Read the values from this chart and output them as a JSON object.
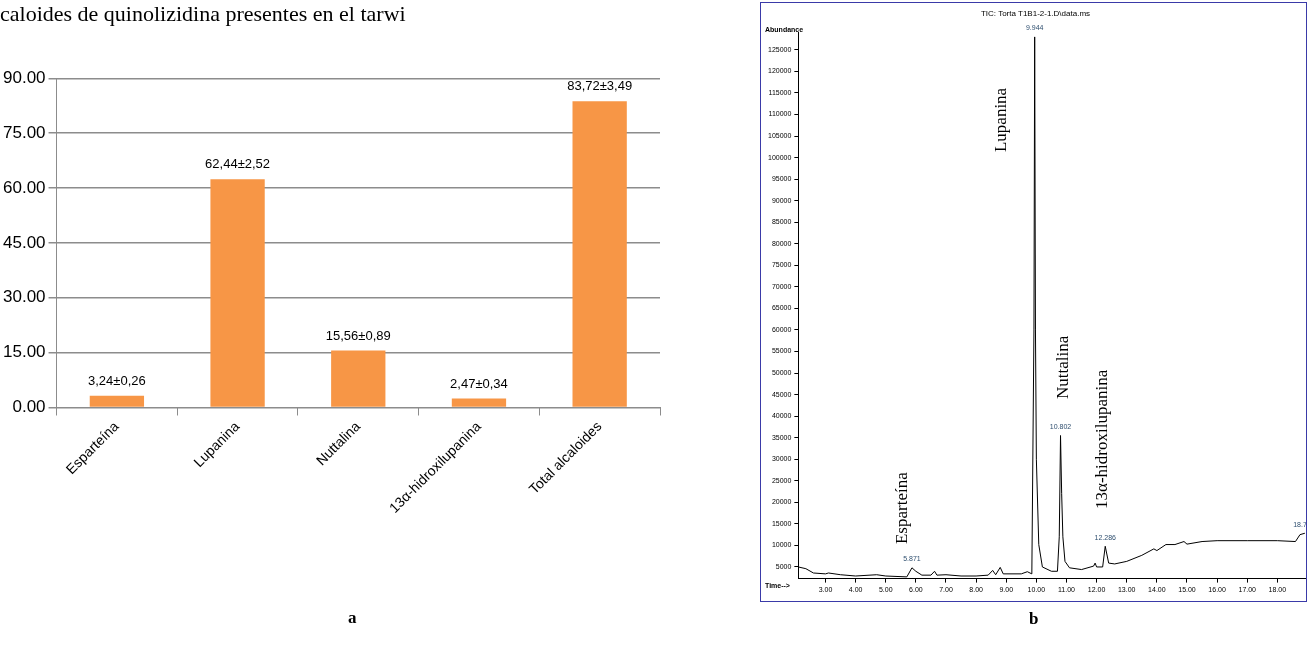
{
  "chart_data": [
    {
      "type": "bar",
      "title": "caloides de quinolizidina presentes en el tarwi",
      "categories": [
        "Esparteína",
        "Lupanina",
        "Nuttalina",
        "13α-hidroxilupanina",
        "Total alcaloides"
      ],
      "values": [
        3.24,
        62.44,
        15.56,
        2.47,
        83.72
      ],
      "value_labels": [
        "3,24±0,26",
        "62,44±2,52",
        "15,56±0,89",
        "2,47±0,34",
        "83,72±3,49"
      ],
      "color": "#f79646",
      "ylim": [
        0,
        90
      ],
      "yticks": [
        {
          "value": 0,
          "label": "0.00"
        },
        {
          "value": 15,
          "label": "15.00"
        },
        {
          "value": 30,
          "label": "30.00"
        },
        {
          "value": 45,
          "label": "45.00"
        },
        {
          "value": 60,
          "label": "60.00"
        },
        {
          "value": 75,
          "label": "75.00"
        },
        {
          "value": 90,
          "label": "90.00"
        }
      ],
      "grid": "y",
      "annotations": [
        "a"
      ]
    },
    {
      "type": "line",
      "title": "TIC: Torta T1B1-2-1.D\\data.ms",
      "xlabel": "Time-->",
      "ylabel": "Abundance",
      "x": [
        2.1,
        2.35,
        2.6,
        3.0,
        3.1,
        3.5,
        4.0,
        4.7,
        5.0,
        5.7,
        5.871,
        6.0,
        6.2,
        6.5,
        6.62,
        6.7,
        7.0,
        7.5,
        8.0,
        8.4,
        8.55,
        8.65,
        8.8,
        8.9,
        9.5,
        9.7,
        9.85,
        9.92,
        9.944,
        9.97,
        10.0,
        10.08,
        10.2,
        10.5,
        10.7,
        10.76,
        10.802,
        10.84,
        10.88,
        10.95,
        11.1,
        11.5,
        11.9,
        11.95,
        12.0,
        12.2,
        12.286,
        12.4,
        12.6,
        13.0,
        13.5,
        13.9,
        14.0,
        14.3,
        14.6,
        14.9,
        15.0,
        15.5,
        16.0,
        17.0,
        18.0,
        18.6,
        18.75,
        18.9
      ],
      "values": [
        5000,
        4600,
        3600,
        3400,
        3600,
        3200,
        2900,
        3200,
        2900,
        2700,
        4800,
        4000,
        3100,
        3100,
        4000,
        3100,
        3200,
        2900,
        2900,
        3100,
        4200,
        3200,
        4900,
        3400,
        3400,
        3900,
        3400,
        60000,
        128000,
        60000,
        30000,
        10200,
        5000,
        4000,
        4000,
        12000,
        35500,
        22000,
        12000,
        6300,
        4800,
        4400,
        5200,
        5900,
        5000,
        5000,
        9800,
        5900,
        5700,
        6300,
        7700,
        9200,
        8800,
        10200,
        10200,
        10900,
        10300,
        10900,
        11100,
        11100,
        11100,
        10900,
        12500,
        12800
      ],
      "color": "#000000",
      "marker": "none",
      "grid": false,
      "legend": false,
      "xlim": [
        2.1,
        18.95
      ],
      "xticks": [
        {
          "value": 3,
          "label": "3.00"
        },
        {
          "value": 4,
          "label": "4.00"
        },
        {
          "value": 5,
          "label": "5.00"
        },
        {
          "value": 6,
          "label": "6.00"
        },
        {
          "value": 7,
          "label": "7.00"
        },
        {
          "value": 8,
          "label": "8.00"
        },
        {
          "value": 9,
          "label": "9.00"
        },
        {
          "value": 10,
          "label": "10.00"
        },
        {
          "value": 11,
          "label": "11.00"
        },
        {
          "value": 12,
          "label": "12.00"
        },
        {
          "value": 13,
          "label": "13.00"
        },
        {
          "value": 14,
          "label": "14.00"
        },
        {
          "value": 15,
          "label": "15.00"
        },
        {
          "value": 16,
          "label": "16.00"
        },
        {
          "value": 17,
          "label": "17.00"
        },
        {
          "value": 18,
          "label": "18.00"
        }
      ],
      "ylim": [
        2300,
        129000
      ],
      "yticks": [
        5000,
        10000,
        15000,
        20000,
        25000,
        30000,
        35000,
        40000,
        45000,
        50000,
        55000,
        60000,
        65000,
        70000,
        75000,
        80000,
        85000,
        90000,
        95000,
        100000,
        105000,
        110000,
        115000,
        120000,
        125000
      ],
      "annotations": [
        "b",
        "Esparteína",
        "Lupanina",
        "Nuttalina",
        "13α-hidroxilupanina",
        {
          "text": "5.871",
          "x": 5.871,
          "y": 4800
        },
        {
          "text": "9.944",
          "x": 9.944,
          "y": 128000
        },
        {
          "text": "10.802",
          "x": 10.802,
          "y": 35500
        },
        {
          "text": "12.286",
          "x": 12.286,
          "y": 9800
        },
        {
          "text": "18.7",
          "x": 18.75,
          "y": 12800
        }
      ]
    }
  ]
}
